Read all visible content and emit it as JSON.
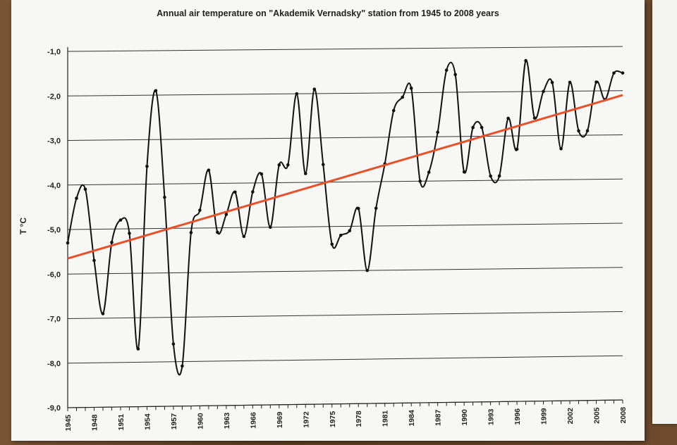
{
  "chart_data": {
    "type": "line",
    "title": "Annual air temperature on \"Akademik Vernadsky\" station from 1945 to 2008 years",
    "ylabel": "T °C",
    "xlabel": "",
    "ylim": [
      -9.0,
      -1.0
    ],
    "y_ticks": [
      "-1,0",
      "-2,0",
      "-3,0",
      "-4,0",
      "-5,0",
      "-6,0",
      "-7,0",
      "-8,0",
      "-9,0"
    ],
    "x_tick_labels": [
      "1945",
      "1948",
      "1951",
      "1954",
      "1957",
      "1960",
      "1963",
      "1966",
      "1969",
      "1972",
      "1975",
      "1978",
      "1981",
      "1984",
      "1987",
      "1990",
      "1993",
      "1996",
      "1999",
      "2002",
      "2005",
      "2008"
    ],
    "grid": true,
    "legend": "none",
    "series": [
      {
        "color": "#111111",
        "x": [
          1945,
          1946,
          1947,
          1948,
          1949,
          1950,
          1951,
          1952,
          1953,
          1954,
          1955,
          1956,
          1957,
          1958,
          1959,
          1960,
          1961,
          1962,
          1963,
          1964,
          1965,
          1966,
          1967,
          1968,
          1969,
          1970,
          1971,
          1972,
          1973,
          1974,
          1975,
          1976,
          1977,
          1978,
          1979,
          1980,
          1981,
          1982,
          1983,
          1984,
          1985,
          1986,
          1987,
          1988,
          1989,
          1990,
          1991,
          1992,
          1993,
          1994,
          1995,
          1996,
          1997,
          1998,
          1999,
          2000,
          2001,
          2002,
          2003,
          2004,
          2005,
          2006,
          2007,
          2008
        ],
        "values": [
          -5.3,
          -4.3,
          -4.1,
          -5.7,
          -6.9,
          -5.3,
          -4.8,
          -5.1,
          -7.7,
          -3.6,
          -1.9,
          -4.3,
          -7.6,
          -8.1,
          -5.1,
          -4.6,
          -3.7,
          -5.1,
          -4.7,
          -4.2,
          -5.2,
          -4.2,
          -3.8,
          -5.0,
          -3.6,
          -3.6,
          -2.0,
          -3.8,
          -1.9,
          -3.6,
          -5.4,
          -5.2,
          -5.1,
          -4.6,
          -6.0,
          -4.6,
          -3.6,
          -2.4,
          -2.1,
          -1.9,
          -4.0,
          -3.8,
          -2.9,
          -1.5,
          -1.6,
          -3.8,
          -2.8,
          -2.8,
          -3.9,
          -3.9,
          -2.6,
          -3.3,
          -1.3,
          -2.6,
          -2.0,
          -1.8,
          -3.3,
          -1.8,
          -2.9,
          -2.9,
          -1.8,
          -2.2,
          -1.6,
          -1.6
        ]
      },
      {
        "color": "#e8502a",
        "x": [
          1945,
          2008
        ],
        "values": [
          -5.65,
          -2.1
        ]
      }
    ]
  }
}
